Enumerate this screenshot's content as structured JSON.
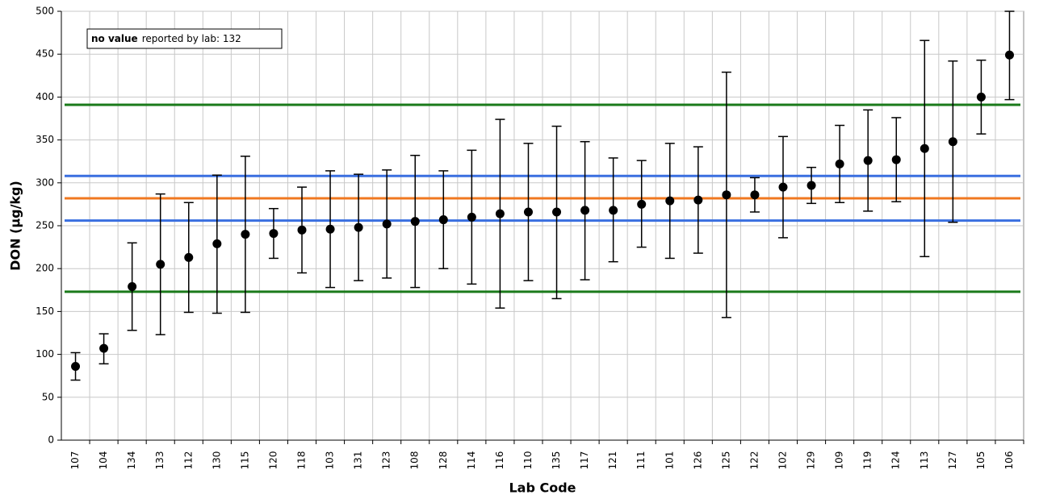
{
  "chart_data": {
    "type": "errorbar",
    "x_label": "Lab Code",
    "y_label": "DON (µg/kg)",
    "annotation_bold": "no value",
    "annotation": "reported by lab: 132",
    "categories": [
      "107",
      "104",
      "134",
      "133",
      "112",
      "130",
      "115",
      "120",
      "118",
      "103",
      "131",
      "123",
      "108",
      "128",
      "114",
      "116",
      "110",
      "135",
      "117",
      "121",
      "111",
      "101",
      "126",
      "125",
      "122",
      "102",
      "129",
      "109",
      "119",
      "124",
      "113",
      "127",
      "105",
      "106"
    ],
    "values": [
      86,
      107,
      179,
      205,
      213,
      229,
      240,
      241,
      245,
      246,
      248,
      252,
      255,
      257,
      260,
      264,
      266,
      266,
      268,
      268,
      275,
      279,
      280,
      286,
      286,
      295,
      297,
      322,
      326,
      327,
      340,
      348,
      400,
      449
    ],
    "lower": [
      70,
      89,
      128,
      123,
      149,
      148,
      149,
      212,
      195,
      178,
      186,
      189,
      178,
      200,
      182,
      154,
      186,
      165,
      187,
      208,
      225,
      212,
      218,
      143,
      266,
      236,
      276,
      277,
      267,
      278,
      214,
      254,
      357,
      397
    ],
    "upper": [
      102,
      124,
      230,
      287,
      277,
      309,
      331,
      270,
      295,
      314,
      310,
      315,
      332,
      314,
      338,
      374,
      346,
      366,
      348,
      329,
      326,
      346,
      342,
      429,
      306,
      354,
      318,
      367,
      385,
      376,
      466,
      442,
      443,
      500
    ],
    "color": "#000000",
    "hlines": [
      {
        "value": 391,
        "color": "#1a7a1a"
      },
      {
        "value": 308,
        "color": "#3a6fe0"
      },
      {
        "value": 282,
        "color": "#f07820"
      },
      {
        "value": 256,
        "color": "#3a6fe0"
      },
      {
        "value": 173,
        "color": "#1a7a1a"
      }
    ],
    "ylim": [
      0,
      500
    ],
    "yticks": [
      0,
      50,
      100,
      150,
      200,
      250,
      300,
      350,
      400,
      450,
      500
    ],
    "grid": true
  }
}
